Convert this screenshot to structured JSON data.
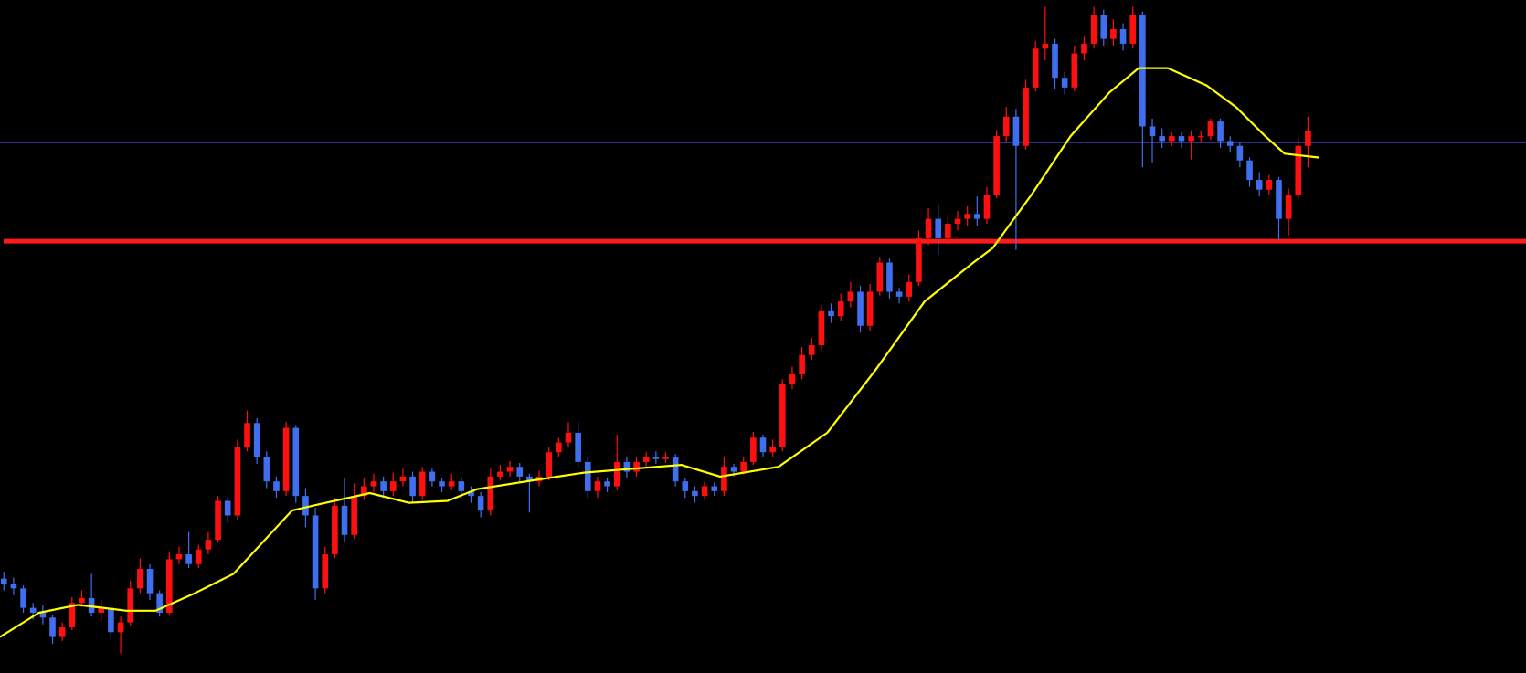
{
  "chart_data": {
    "type": "candlestick",
    "up_color": "#ff1010",
    "down_color": "#3f6ff0",
    "xlim": [
      -0.4,
      156.4
    ],
    "ylim": [
      0,
      692
    ],
    "open": [
      97,
      92,
      87,
      67,
      62,
      57,
      37,
      47,
      72,
      77,
      62,
      67,
      42,
      52,
      87,
      107,
      82,
      62,
      117,
      122,
      112,
      127,
      137,
      177,
      162,
      232,
      257,
      222,
      197,
      187,
      252,
      182,
      162,
      87,
      122,
      172,
      142,
      182,
      192,
      197,
      187,
      197,
      202,
      182,
      207,
      197,
      192,
      197,
      187,
      182,
      167,
      202,
      207,
      212,
      202,
      197,
      202,
      227,
      237,
      247,
      217,
      187,
      197,
      192,
      217,
      207,
      217,
      222,
      220,
      222,
      197,
      187,
      182,
      192,
      187,
      212,
      207,
      217,
      242,
      227,
      232,
      297,
      307,
      327,
      337,
      372,
      367,
      382,
      392,
      357,
      392,
      422,
      392,
      387,
      402,
      447,
      467,
      447,
      462,
      467,
      472,
      467,
      492,
      552,
      572,
      542,
      602,
      642,
      647,
      612,
      602,
      637,
      647,
      677,
      652,
      662,
      647,
      677,
      562,
      552,
      547,
      552,
      547,
      552,
      552,
      567,
      547,
      542,
      527,
      507,
      497,
      507,
      467,
      492,
      542
    ],
    "high": [
      104,
      98,
      90,
      72,
      70,
      60,
      52,
      78,
      85,
      102,
      75,
      70,
      58,
      95,
      118,
      112,
      85,
      125,
      130,
      145,
      132,
      145,
      182,
      180,
      240,
      270,
      262,
      228,
      202,
      258,
      255,
      190,
      170,
      130,
      180,
      200,
      195,
      200,
      205,
      202,
      206,
      210,
      207,
      212,
      210,
      200,
      205,
      200,
      192,
      186,
      210,
      214,
      218,
      216,
      205,
      208,
      232,
      242,
      258,
      258,
      222,
      202,
      200,
      245,
      222,
      222,
      227,
      228,
      227,
      225,
      200,
      192,
      197,
      196,
      222,
      215,
      222,
      248,
      245,
      240,
      302,
      315,
      335,
      345,
      378,
      380,
      390,
      402,
      398,
      400,
      428,
      426,
      396,
      410,
      455,
      478,
      482,
      472,
      475,
      480,
      490,
      500,
      558,
      582,
      580,
      610,
      650,
      685,
      652,
      618,
      645,
      655,
      685,
      682,
      672,
      668,
      685,
      680,
      570,
      560,
      556,
      556,
      558,
      558,
      570,
      570,
      552,
      545,
      530,
      515,
      512,
      510,
      498,
      550,
      572
    ],
    "low": [
      85,
      80,
      62,
      55,
      50,
      30,
      33,
      44,
      68,
      58,
      55,
      35,
      20,
      48,
      82,
      75,
      58,
      60,
      112,
      108,
      108,
      122,
      134,
      155,
      158,
      228,
      215,
      190,
      180,
      182,
      175,
      150,
      75,
      82,
      118,
      135,
      138,
      178,
      186,
      180,
      182,
      192,
      175,
      178,
      192,
      186,
      188,
      180,
      175,
      160,
      162,
      198,
      202,
      196,
      165,
      192,
      198,
      222,
      232,
      212,
      180,
      180,
      186,
      188,
      200,
      202,
      212,
      215,
      216,
      192,
      180,
      175,
      178,
      182,
      182,
      202,
      204,
      214,
      222,
      222,
      228,
      292,
      302,
      322,
      332,
      360,
      362,
      376,
      350,
      352,
      388,
      385,
      380,
      382,
      398,
      440,
      430,
      440,
      455,
      460,
      460,
      462,
      488,
      546,
      435,
      538,
      598,
      630,
      600,
      595,
      598,
      630,
      642,
      645,
      645,
      640,
      642,
      520,
      525,
      540,
      542,
      540,
      528,
      545,
      548,
      540,
      535,
      520,
      500,
      490,
      492,
      445,
      450,
      488,
      520
    ],
    "close": [
      92,
      87,
      67,
      62,
      57,
      37,
      47,
      72,
      77,
      62,
      67,
      42,
      52,
      87,
      107,
      82,
      62,
      117,
      122,
      112,
      127,
      137,
      177,
      162,
      232,
      257,
      222,
      197,
      187,
      252,
      182,
      162,
      87,
      122,
      172,
      142,
      182,
      192,
      197,
      187,
      197,
      202,
      182,
      207,
      197,
      192,
      197,
      187,
      182,
      167,
      202,
      207,
      212,
      202,
      197,
      202,
      227,
      237,
      247,
      217,
      187,
      197,
      192,
      217,
      207,
      217,
      222,
      220,
      222,
      197,
      187,
      182,
      192,
      187,
      212,
      207,
      217,
      242,
      227,
      232,
      297,
      307,
      327,
      337,
      372,
      367,
      382,
      392,
      357,
      392,
      422,
      392,
      387,
      402,
      447,
      467,
      447,
      462,
      467,
      472,
      467,
      492,
      552,
      572,
      542,
      602,
      642,
      647,
      612,
      602,
      637,
      647,
      677,
      652,
      662,
      647,
      677,
      562,
      552,
      547,
      552,
      547,
      552,
      552,
      567,
      547,
      542,
      527,
      507,
      497,
      507,
      467,
      492,
      542,
      557
    ],
    "overlay": {
      "type": "line",
      "color": "#ffff00",
      "x": [
        -0.4,
        3.6,
        7.6,
        12.6,
        15.6,
        19.6,
        23.6,
        29.6,
        32.6,
        37.6,
        41.6,
        45.6,
        48.6,
        55.6,
        59.6,
        64.6,
        69.6,
        73.6,
        79.6,
        84.6,
        89.6,
        94.6,
        99.6,
        101.6,
        105.6,
        109.6,
        113.6,
        116.6,
        119.6,
        123.6,
        126.6,
        129.6,
        131.6,
        135.1
      ],
      "values": [
        37,
        62,
        70,
        64,
        64,
        82,
        102,
        167,
        174,
        185,
        175,
        177,
        189,
        200,
        206,
        210,
        214,
        202,
        212,
        247,
        312,
        382,
        422,
        437,
        492,
        552,
        597,
        622,
        622,
        604,
        582,
        552,
        534,
        530
      ]
    },
    "levels": [
      {
        "value": 545,
        "color": "#30308a"
      },
      {
        "value": 444,
        "color": "#ff1a1a"
      }
    ]
  }
}
